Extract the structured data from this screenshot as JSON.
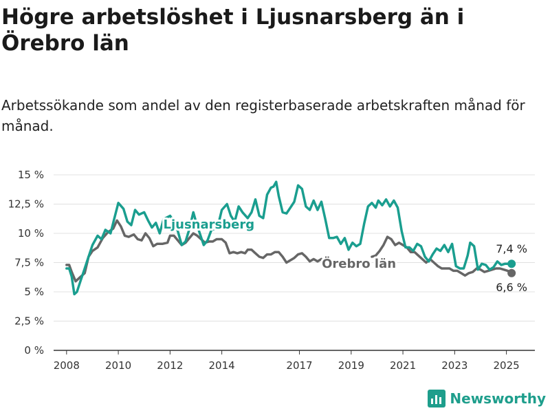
{
  "chart_data": {
    "type": "line",
    "title": "Högre arbetslöshet i Ljusnarsberg än i Örebro län",
    "subtitle": "Arbetssökande som andel av den registerbaserade arbetskraften månad för månad.",
    "ylim": [
      0,
      15
    ],
    "xlim": [
      2007.5,
      2026.1
    ],
    "y_ticks": [
      0,
      2.5,
      5,
      7.5,
      10,
      12.5,
      15
    ],
    "y_tick_labels": [
      "0 %",
      "2,5 %",
      "5 %",
      "7,5 %",
      "10 %",
      "12,5 %",
      "15 %"
    ],
    "x_ticks": [
      2008,
      2010,
      2012,
      2014,
      2017,
      2019,
      2021,
      2023,
      2025
    ],
    "x_tick_labels": [
      "2008",
      "2010",
      "2012",
      "2014",
      "2017",
      "2019",
      "2021",
      "2023",
      "2025"
    ],
    "grid": true,
    "series": [
      {
        "name": "Ljusnarsberg",
        "color": "#1a9e8f",
        "end_label": "7,4 %",
        "points": [
          [
            2008.0,
            7.0
          ],
          [
            2008.1,
            7.0
          ],
          [
            2008.2,
            6.3
          ],
          [
            2008.3,
            4.8
          ],
          [
            2008.4,
            5.0
          ],
          [
            2008.55,
            6.0
          ],
          [
            2008.7,
            7.0
          ],
          [
            2008.85,
            8.0
          ],
          [
            2009.0,
            9.0
          ],
          [
            2009.2,
            9.8
          ],
          [
            2009.35,
            9.5
          ],
          [
            2009.5,
            10.3
          ],
          [
            2009.7,
            10.0
          ],
          [
            2009.85,
            11.3
          ],
          [
            2010.0,
            12.6
          ],
          [
            2010.2,
            12.1
          ],
          [
            2010.35,
            11.0
          ],
          [
            2010.5,
            10.7
          ],
          [
            2010.65,
            12.0
          ],
          [
            2010.8,
            11.6
          ],
          [
            2011.0,
            11.8
          ],
          [
            2011.15,
            11.1
          ],
          [
            2011.3,
            10.5
          ],
          [
            2011.45,
            10.9
          ],
          [
            2011.6,
            10.0
          ],
          [
            2011.75,
            11.2
          ],
          [
            2012.0,
            11.5
          ],
          [
            2012.15,
            11.0
          ],
          [
            2012.3,
            10.2
          ],
          [
            2012.45,
            9.0
          ],
          [
            2012.6,
            9.3
          ],
          [
            2012.75,
            10.4
          ],
          [
            2012.9,
            11.8
          ],
          [
            2013.0,
            11.0
          ],
          [
            2013.15,
            10.0
          ],
          [
            2013.3,
            9.0
          ],
          [
            2013.45,
            9.4
          ],
          [
            2013.6,
            10.3
          ],
          [
            2013.75,
            10.4
          ],
          [
            2013.9,
            11.1
          ],
          [
            2014.0,
            12.0
          ],
          [
            2014.2,
            12.5
          ],
          [
            2014.35,
            11.5
          ],
          [
            2014.5,
            11.0
          ],
          [
            2014.65,
            12.3
          ],
          [
            2014.8,
            11.8
          ],
          [
            2015.0,
            11.3
          ],
          [
            2015.15,
            11.8
          ],
          [
            2015.3,
            12.9
          ],
          [
            2015.45,
            11.5
          ],
          [
            2015.6,
            11.3
          ],
          [
            2015.75,
            13.3
          ],
          [
            2015.9,
            13.9
          ],
          [
            2016.0,
            14.0
          ],
          [
            2016.1,
            14.4
          ],
          [
            2016.2,
            13.2
          ],
          [
            2016.35,
            11.8
          ],
          [
            2016.5,
            11.7
          ],
          [
            2016.65,
            12.2
          ],
          [
            2016.8,
            12.7
          ],
          [
            2016.95,
            14.1
          ],
          [
            2017.1,
            13.8
          ],
          [
            2017.25,
            12.3
          ],
          [
            2017.4,
            12.0
          ],
          [
            2017.55,
            12.8
          ],
          [
            2017.7,
            12.0
          ],
          [
            2017.85,
            12.7
          ],
          [
            2018.0,
            11.2
          ],
          [
            2018.15,
            9.6
          ],
          [
            2018.3,
            9.6
          ],
          [
            2018.45,
            9.7
          ],
          [
            2018.6,
            9.1
          ],
          [
            2018.75,
            9.6
          ],
          [
            2018.9,
            8.6
          ],
          [
            2019.05,
            9.2
          ],
          [
            2019.2,
            8.9
          ],
          [
            2019.35,
            9.1
          ],
          [
            2019.5,
            10.8
          ],
          [
            2019.65,
            12.3
          ],
          [
            2019.8,
            12.6
          ],
          [
            2019.95,
            12.2
          ],
          [
            2020.05,
            12.8
          ],
          [
            2020.2,
            12.4
          ],
          [
            2020.35,
            12.9
          ],
          [
            2020.5,
            12.3
          ],
          [
            2020.65,
            12.8
          ],
          [
            2020.8,
            12.2
          ],
          [
            2020.95,
            10.2
          ],
          [
            2021.1,
            8.8
          ],
          [
            2021.25,
            8.8
          ],
          [
            2021.4,
            8.5
          ],
          [
            2021.55,
            9.1
          ],
          [
            2021.7,
            8.9
          ],
          [
            2021.85,
            8.0
          ],
          [
            2022.0,
            7.6
          ],
          [
            2022.15,
            8.2
          ],
          [
            2022.3,
            8.7
          ],
          [
            2022.45,
            8.5
          ],
          [
            2022.6,
            9.0
          ],
          [
            2022.75,
            8.4
          ],
          [
            2022.9,
            9.1
          ],
          [
            2023.05,
            7.2
          ],
          [
            2023.2,
            7.0
          ],
          [
            2023.35,
            7.0
          ],
          [
            2023.5,
            8.1
          ],
          [
            2023.6,
            9.2
          ],
          [
            2023.75,
            8.9
          ],
          [
            2023.9,
            6.9
          ],
          [
            2024.05,
            7.4
          ],
          [
            2024.2,
            7.3
          ],
          [
            2024.35,
            6.9
          ],
          [
            2024.5,
            7.1
          ],
          [
            2024.65,
            7.6
          ],
          [
            2024.8,
            7.3
          ],
          [
            2024.95,
            7.4
          ],
          [
            2025.2,
            7.4
          ]
        ]
      },
      {
        "name": "Örebro län",
        "color": "#666666",
        "end_label": "6,6 %",
        "points": [
          [
            2008.0,
            7.3
          ],
          [
            2008.1,
            7.3
          ],
          [
            2008.2,
            6.7
          ],
          [
            2008.35,
            5.9
          ],
          [
            2008.5,
            6.2
          ],
          [
            2008.7,
            6.6
          ],
          [
            2008.85,
            8.0
          ],
          [
            2009.0,
            8.5
          ],
          [
            2009.2,
            8.8
          ],
          [
            2009.4,
            9.6
          ],
          [
            2009.6,
            10.1
          ],
          [
            2009.8,
            10.4
          ],
          [
            2009.95,
            11.1
          ],
          [
            2010.1,
            10.6
          ],
          [
            2010.25,
            9.8
          ],
          [
            2010.4,
            9.7
          ],
          [
            2010.6,
            9.9
          ],
          [
            2010.75,
            9.5
          ],
          [
            2010.9,
            9.4
          ],
          [
            2011.05,
            10.0
          ],
          [
            2011.2,
            9.6
          ],
          [
            2011.35,
            8.9
          ],
          [
            2011.5,
            9.1
          ],
          [
            2011.7,
            9.1
          ],
          [
            2011.9,
            9.2
          ],
          [
            2012.0,
            9.8
          ],
          [
            2012.15,
            9.8
          ],
          [
            2012.3,
            9.4
          ],
          [
            2012.45,
            9.0
          ],
          [
            2012.6,
            9.2
          ],
          [
            2012.75,
            9.6
          ],
          [
            2012.9,
            10.0
          ],
          [
            2013.05,
            9.8
          ],
          [
            2013.2,
            9.5
          ],
          [
            2013.35,
            9.2
          ],
          [
            2013.5,
            9.3
          ],
          [
            2013.65,
            9.3
          ],
          [
            2013.8,
            9.5
          ],
          [
            2014.0,
            9.5
          ],
          [
            2014.15,
            9.2
          ],
          [
            2014.3,
            8.3
          ],
          [
            2014.45,
            8.4
          ],
          [
            2014.6,
            8.3
          ],
          [
            2014.75,
            8.4
          ],
          [
            2014.9,
            8.3
          ],
          [
            2015.0,
            8.6
          ],
          [
            2015.15,
            8.6
          ],
          [
            2015.3,
            8.3
          ],
          [
            2015.45,
            8.0
          ],
          [
            2015.6,
            7.9
          ],
          [
            2015.75,
            8.2
          ],
          [
            2015.9,
            8.2
          ],
          [
            2016.05,
            8.4
          ],
          [
            2016.2,
            8.4
          ],
          [
            2016.35,
            8.0
          ],
          [
            2016.5,
            7.5
          ],
          [
            2016.65,
            7.7
          ],
          [
            2016.8,
            7.9
          ],
          [
            2016.95,
            8.2
          ],
          [
            2017.1,
            8.3
          ],
          [
            2017.25,
            8.0
          ],
          [
            2017.4,
            7.6
          ],
          [
            2017.55,
            7.8
          ],
          [
            2017.7,
            7.6
          ],
          [
            2017.85,
            7.8
          ],
          [
            2019.8,
            8.0
          ],
          [
            2019.95,
            8.1
          ],
          [
            2020.1,
            8.5
          ],
          [
            2020.25,
            9.0
          ],
          [
            2020.4,
            9.7
          ],
          [
            2020.55,
            9.5
          ],
          [
            2020.7,
            9.0
          ],
          [
            2020.85,
            9.2
          ],
          [
            2021.0,
            9.0
          ],
          [
            2021.15,
            8.8
          ],
          [
            2021.3,
            8.4
          ],
          [
            2021.45,
            8.4
          ],
          [
            2021.6,
            8.1
          ],
          [
            2021.75,
            7.8
          ],
          [
            2021.9,
            7.5
          ],
          [
            2022.05,
            7.8
          ],
          [
            2022.2,
            7.5
          ],
          [
            2022.35,
            7.2
          ],
          [
            2022.5,
            7.0
          ],
          [
            2022.65,
            7.0
          ],
          [
            2022.8,
            7.0
          ],
          [
            2022.95,
            6.8
          ],
          [
            2023.1,
            6.8
          ],
          [
            2023.25,
            6.6
          ],
          [
            2023.4,
            6.4
          ],
          [
            2023.55,
            6.6
          ],
          [
            2023.7,
            6.7
          ],
          [
            2023.85,
            7.0
          ],
          [
            2024.0,
            6.9
          ],
          [
            2024.15,
            6.7
          ],
          [
            2024.3,
            6.8
          ],
          [
            2024.45,
            6.9
          ],
          [
            2024.6,
            7.0
          ],
          [
            2024.75,
            7.0
          ],
          [
            2024.9,
            6.9
          ],
          [
            2025.05,
            6.8
          ],
          [
            2025.2,
            6.6
          ]
        ]
      }
    ]
  },
  "branding": {
    "logo_text": "Newsworthy"
  },
  "colors": {
    "accent": "#1a9e8f",
    "secondary": "#666666"
  }
}
